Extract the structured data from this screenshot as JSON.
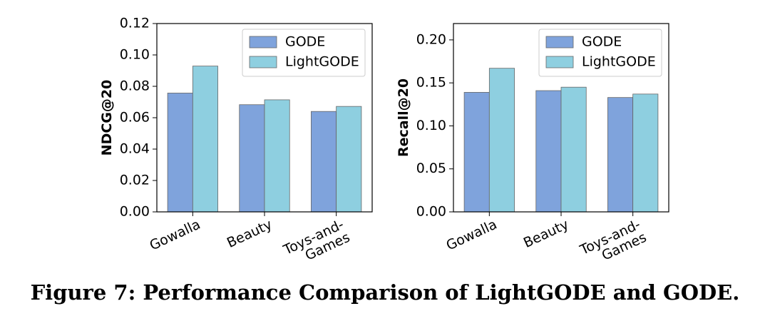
{
  "chart_data": [
    {
      "type": "bar",
      "ylabel": "NDCG@20",
      "categories": [
        "Gowalla",
        "Beauty",
        "Toys-and-\nGames"
      ],
      "series": [
        {
          "name": "GODE",
          "color": "#7fa3dc",
          "values": [
            0.0757,
            0.0683,
            0.064
          ]
        },
        {
          "name": "LightGODE",
          "color": "#8ecfe0",
          "values": [
            0.0929,
            0.0714,
            0.0672
          ]
        }
      ],
      "ylim": [
        0,
        0.12
      ],
      "yticks": [
        {
          "value": 0,
          "label": "0.00"
        },
        {
          "value": 0.02,
          "label": "0.02"
        },
        {
          "value": 0.04,
          "label": "0.04"
        },
        {
          "value": 0.06,
          "label": "0.06"
        },
        {
          "value": 0.08,
          "label": "0.08"
        },
        {
          "value": 0.1,
          "label": "0.10"
        },
        {
          "value": 0.12,
          "label": "0.12"
        }
      ],
      "legend": "upper right"
    },
    {
      "type": "bar",
      "ylabel": "Recall@20",
      "categories": [
        "Gowalla",
        "Beauty",
        "Toys-and-\nGames"
      ],
      "series": [
        {
          "name": "GODE",
          "color": "#7fa3dc",
          "values": [
            0.139,
            0.141,
            0.133
          ]
        },
        {
          "name": "LightGODE",
          "color": "#8ecfe0",
          "values": [
            0.167,
            0.145,
            0.137
          ]
        }
      ],
      "ylim": [
        0,
        0.219
      ],
      "yticks": [
        {
          "value": 0,
          "label": "0.00"
        },
        {
          "value": 0.05,
          "label": "0.05"
        },
        {
          "value": 0.1,
          "label": "0.10"
        },
        {
          "value": 0.15,
          "label": "0.15"
        },
        {
          "value": 0.2,
          "label": "0.20"
        }
      ],
      "legend": "upper right"
    }
  ],
  "caption": "Figure 7: Performance Comparison of LightGODE and GODE."
}
